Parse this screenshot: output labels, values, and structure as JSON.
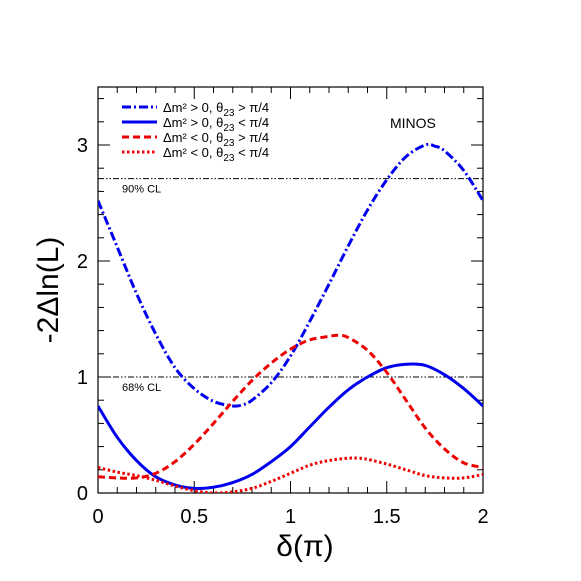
{
  "chart_data": {
    "type": "line",
    "title": "",
    "annotation": "MINOS",
    "xlabel": "δ(π)",
    "ylabel": "-2Δln(L)",
    "xlim": [
      0,
      2
    ],
    "ylim": [
      0,
      3.5
    ],
    "x_ticks": [
      "0",
      "0.5",
      "1",
      "1.5",
      "2"
    ],
    "y_ticks": [
      "0",
      "1",
      "2",
      "3"
    ],
    "grid": false,
    "legend_position": "top-left",
    "reference_lines": [
      {
        "label": "90% CL",
        "y": 2.71
      },
      {
        "label": "68% CL",
        "y": 1.0
      }
    ],
    "series": [
      {
        "legend_main": "Δm² > 0, θ",
        "legend_sub": "23",
        "legend_tail": " > π/4",
        "color": "#0000ee",
        "style": "dashdot",
        "x": [
          0.0,
          0.1,
          0.2,
          0.3,
          0.4,
          0.5,
          0.6,
          0.7,
          0.75,
          0.8,
          0.9,
          1.0,
          1.1,
          1.2,
          1.3,
          1.4,
          1.5,
          1.6,
          1.7,
          1.75,
          1.8,
          1.9,
          2.0
        ],
        "y": [
          2.52,
          2.12,
          1.72,
          1.37,
          1.08,
          0.9,
          0.79,
          0.75,
          0.76,
          0.8,
          0.95,
          1.18,
          1.48,
          1.8,
          2.13,
          2.44,
          2.7,
          2.9,
          3.0,
          2.99,
          2.95,
          2.78,
          2.52
        ]
      },
      {
        "legend_main": "Δm² > 0, θ",
        "legend_sub": "23",
        "legend_tail": " < π/4",
        "color": "#0000ee",
        "style": "solid",
        "x": [
          0.0,
          0.1,
          0.2,
          0.3,
          0.4,
          0.5,
          0.6,
          0.7,
          0.8,
          0.9,
          1.0,
          1.1,
          1.2,
          1.3,
          1.4,
          1.5,
          1.6,
          1.7,
          1.8,
          1.9,
          2.0
        ],
        "y": [
          0.75,
          0.48,
          0.28,
          0.14,
          0.07,
          0.04,
          0.05,
          0.09,
          0.16,
          0.27,
          0.4,
          0.57,
          0.74,
          0.89,
          1.0,
          1.08,
          1.11,
          1.1,
          1.02,
          0.9,
          0.75
        ]
      },
      {
        "legend_main": "Δm² < 0, θ",
        "legend_sub": "23",
        "legend_tail": " > π/4",
        "color": "#ee0000",
        "style": "dashed",
        "x": [
          0.0,
          0.1,
          0.2,
          0.3,
          0.4,
          0.5,
          0.6,
          0.7,
          0.8,
          0.9,
          1.0,
          1.1,
          1.2,
          1.25,
          1.3,
          1.4,
          1.5,
          1.6,
          1.7,
          1.8,
          1.9,
          2.0
        ],
        "y": [
          0.14,
          0.13,
          0.13,
          0.17,
          0.27,
          0.42,
          0.6,
          0.79,
          0.97,
          1.12,
          1.24,
          1.32,
          1.35,
          1.36,
          1.34,
          1.23,
          1.04,
          0.8,
          0.56,
          0.38,
          0.26,
          0.22
        ]
      },
      {
        "legend_main": "Δm² < 0, θ",
        "legend_sub": "23",
        "legend_tail": " < π/4",
        "color": "#ee0000",
        "style": "dotted",
        "x": [
          0.0,
          0.1,
          0.2,
          0.3,
          0.4,
          0.5,
          0.6,
          0.7,
          0.8,
          0.9,
          1.0,
          1.1,
          1.2,
          1.3,
          1.35,
          1.4,
          1.5,
          1.6,
          1.7,
          1.8,
          1.9,
          2.0
        ],
        "y": [
          0.22,
          0.18,
          0.15,
          0.11,
          0.06,
          0.02,
          0.0,
          0.01,
          0.04,
          0.1,
          0.17,
          0.24,
          0.28,
          0.3,
          0.3,
          0.29,
          0.25,
          0.2,
          0.15,
          0.13,
          0.13,
          0.16
        ]
      }
    ]
  }
}
